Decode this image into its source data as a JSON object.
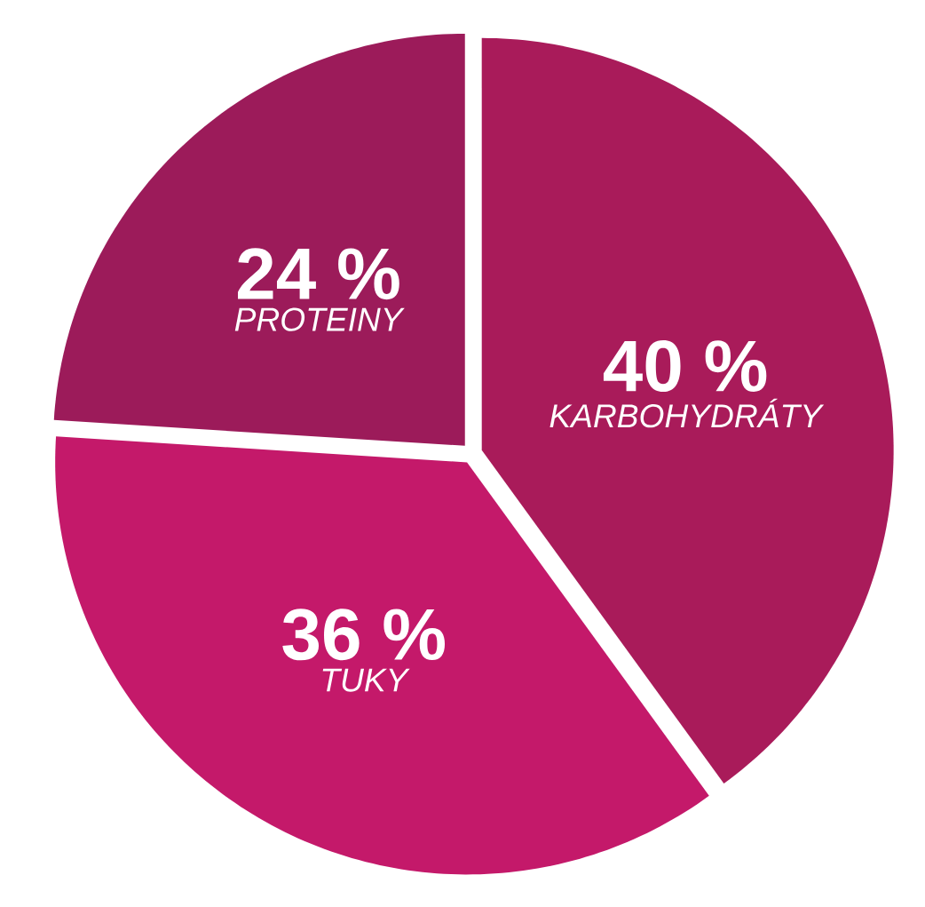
{
  "chart_data": {
    "type": "pie",
    "categories": [
      "KARBOHYDRÁTY",
      "TUKY",
      "PROTEINY"
    ],
    "values": [
      40,
      36,
      24
    ],
    "value_labels": [
      "40 %",
      "36 %",
      "24 %"
    ],
    "colors": [
      "#a91b5a",
      "#c4196a",
      "#9c1b5a"
    ]
  }
}
